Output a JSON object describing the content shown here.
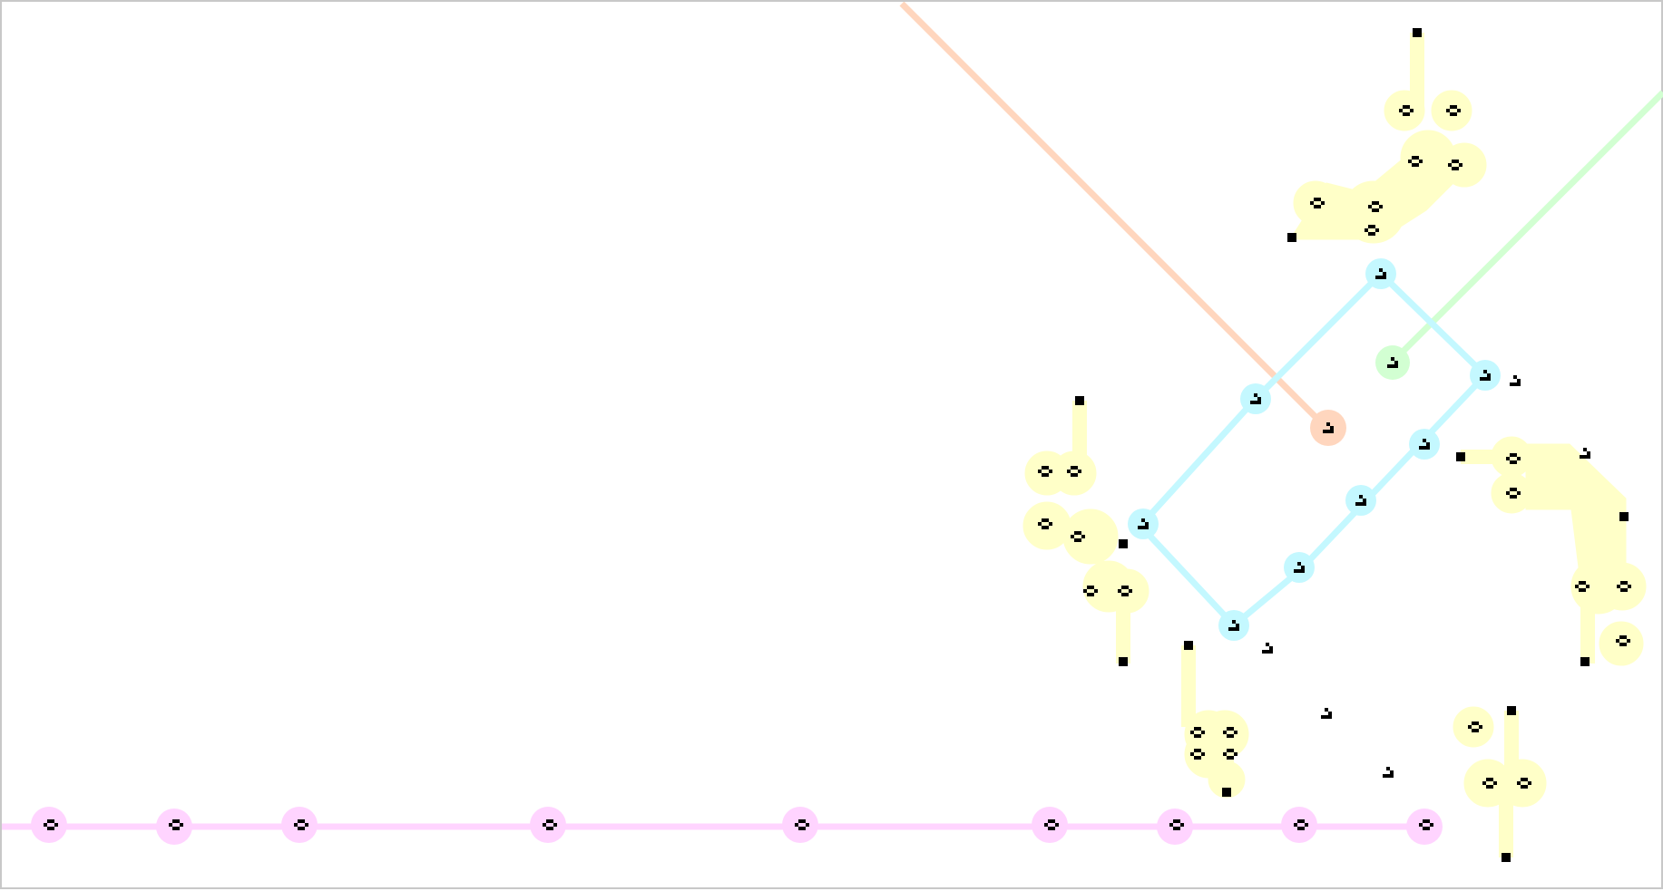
{
  "canvas": {
    "background": "#ffffff",
    "border_color": "#c8c8c8"
  },
  "palette": {
    "ink": "#000000",
    "glider_track_pink": "#ffd4ff",
    "glider_track_cyan": "#c4f8ff",
    "glider_track_peach": "#ffd6be",
    "glider_track_green": "#d2ffd2",
    "gun_halo_yellow": "#ffffc8"
  },
  "pattern": {
    "kind": "cellular-automaton-glider-circuit",
    "track_count": 4,
    "glider_gun_count": 7,
    "loose_glider_count": 5
  }
}
